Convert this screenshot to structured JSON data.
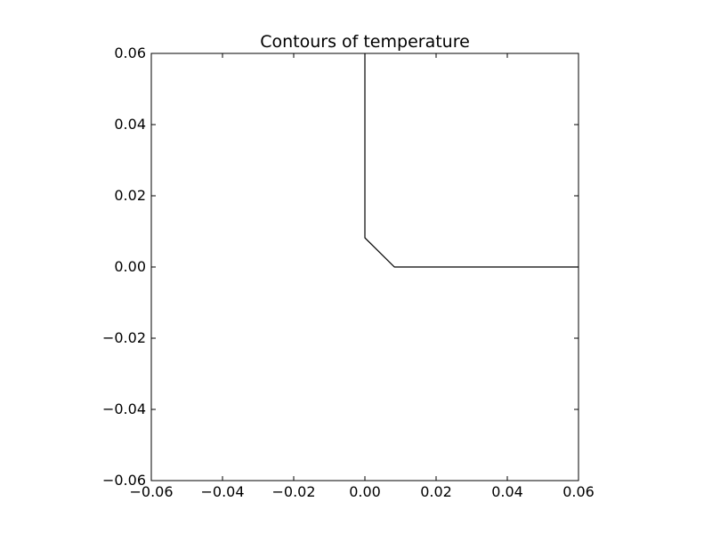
{
  "chart_data": {
    "type": "line",
    "title": "Contours of temperature",
    "xlabel": "",
    "ylabel": "",
    "xlim": [
      -0.06,
      0.06
    ],
    "ylim": [
      -0.06,
      0.06
    ],
    "grid": false,
    "legend": "none",
    "x_ticks": [
      -0.06,
      -0.04,
      -0.02,
      0.0,
      0.02,
      0.04,
      0.06
    ],
    "y_ticks": [
      -0.06,
      -0.04,
      -0.02,
      0.0,
      0.02,
      0.04,
      0.06
    ],
    "x_tick_labels": [
      "−0.06",
      "−0.04",
      "−0.02",
      "0.00",
      "0.02",
      "0.04",
      "0.06"
    ],
    "y_tick_labels": [
      "−0.06",
      "−0.04",
      "−0.02",
      "0.00",
      "0.02",
      "0.04",
      "0.06"
    ],
    "series": [
      {
        "color": "#000000",
        "points": [
          [
            0.0,
            0.06
          ],
          [
            0.0,
            0.0082
          ],
          [
            0.0083,
            0.0
          ],
          [
            0.06,
            0.0
          ]
        ]
      }
    ]
  }
}
